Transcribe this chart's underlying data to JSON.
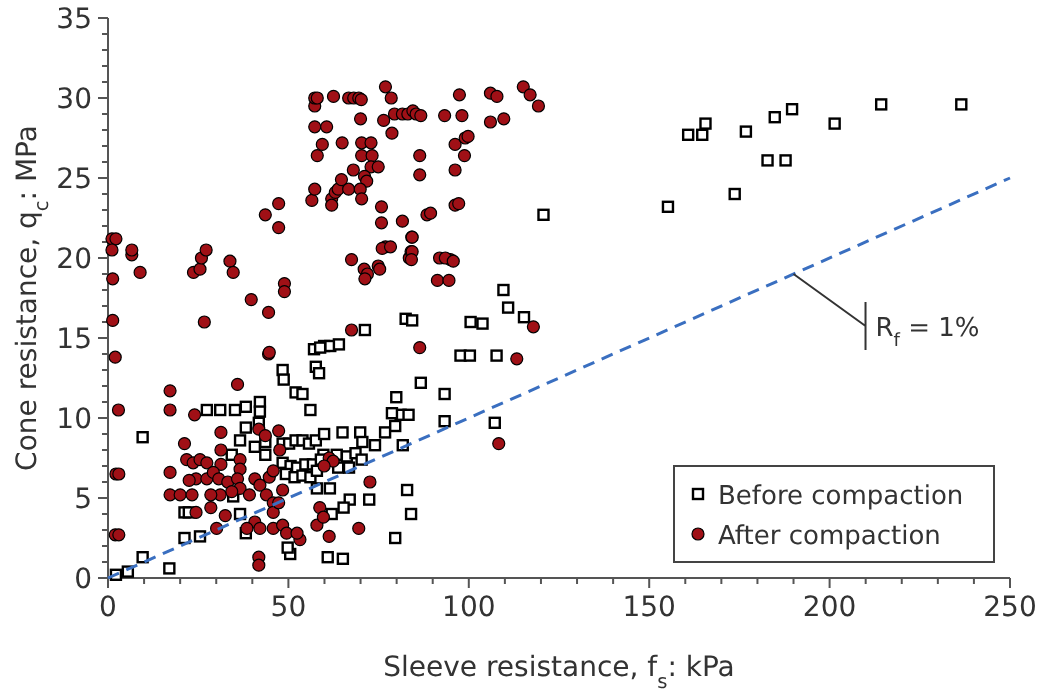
{
  "chart_data": {
    "type": "scatter",
    "xlabel": "Sleeve resistance, f$_{s}$: kPa",
    "ylabel": "Cone resistance, q$_{c}$: MPa",
    "xlim": [
      0,
      250
    ],
    "ylim": [
      0,
      35
    ],
    "xticks": [
      0,
      {
        "value": 10,
        "label": null
      },
      {
        "value": 20,
        "label": null
      },
      {
        "value": 30,
        "label": null
      },
      {
        "value": 40,
        "label": null
      },
      50,
      {
        "value": 60,
        "label": null
      },
      {
        "value": 70,
        "label": null
      },
      {
        "value": 80,
        "label": null
      },
      {
        "value": 90,
        "label": null
      },
      100,
      {
        "value": 110,
        "label": null
      },
      {
        "value": 120,
        "label": null
      },
      {
        "value": 130,
        "label": null
      },
      {
        "value": 140,
        "label": null
      },
      150,
      {
        "value": 160,
        "label": null
      },
      {
        "value": 170,
        "label": null
      },
      {
        "value": 180,
        "label": null
      },
      {
        "value": 190,
        "label": null
      },
      200,
      {
        "value": 210,
        "label": null
      },
      {
        "value": 220,
        "label": null
      },
      {
        "value": 230,
        "label": null
      },
      {
        "value": 240,
        "label": null
      },
      250
    ],
    "yticks": [
      0,
      {
        "value": 1,
        "label": null
      },
      {
        "value": 2,
        "label": null
      },
      {
        "value": 3,
        "label": null
      },
      {
        "value": 4,
        "label": null
      },
      5,
      {
        "value": 6,
        "label": null
      },
      {
        "value": 7,
        "label": null
      },
      {
        "value": 8,
        "label": null
      },
      {
        "value": 9,
        "label": null
      },
      10,
      {
        "value": 11,
        "label": null
      },
      {
        "value": 12,
        "label": null
      },
      {
        "value": 13,
        "label": null
      },
      {
        "value": 14,
        "label": null
      },
      15,
      {
        "value": 16,
        "label": null
      },
      {
        "value": 17,
        "label": null
      },
      {
        "value": 18,
        "label": null
      },
      {
        "value": 19,
        "label": null
      },
      20,
      {
        "value": 21,
        "label": null
      },
      {
        "value": 22,
        "label": null
      },
      {
        "value": 23,
        "label": null
      },
      {
        "value": 24,
        "label": null
      },
      25,
      {
        "value": 26,
        "label": null
      },
      {
        "value": 27,
        "label": null
      },
      {
        "value": 28,
        "label": null
      },
      {
        "value": 29,
        "label": null
      },
      30,
      {
        "value": 31,
        "label": null
      },
      {
        "value": 32,
        "label": null
      },
      {
        "value": 33,
        "label": null
      },
      {
        "value": 34,
        "label": null
      },
      35
    ],
    "grid": false,
    "legend": "bottom right",
    "annotations": [
      {
        "text": "R$_{f}$ = 1%",
        "x": 190,
        "y": 19
      }
    ],
    "series": [
      {
        "name": "Before compaction",
        "marker": "square",
        "color": "#000000",
        "x": [
          2.2,
          5.5,
          9.6,
          17,
          9.6,
          21.2,
          22.4,
          21.2,
          25.5,
          27.4,
          31.1,
          35.2,
          38.2,
          42.1,
          42.1,
          41.8,
          48.4,
          48.7,
          52,
          53.9,
          57.6,
          58.5,
          56.1,
          59.9,
          61.6,
          64,
          57.1,
          58.8,
          71.2,
          82.5,
          97.7,
          100.5,
          100.3,
          107.7,
          107.2,
          38.2,
          36.6,
          34.3,
          40.7,
          43.6,
          43.6,
          48.4,
          50.2,
          52,
          53.9,
          55.7,
          57.6,
          59.9,
          65,
          69.9,
          59.7,
          63.4,
          66.2,
          68.6,
          48.4,
          50.6,
          52.4,
          54.7,
          56.8,
          59,
          49.3,
          51.7,
          53.9,
          56.1,
          57.9,
          63.8,
          66.8,
          70.3,
          74,
          76.8,
          79.6,
          81.1,
          78.7,
          83.3,
          79.9,
          81.7,
          86.7,
          93.3,
          93.3,
          82.9,
          84,
          79.6,
          72.4,
          67,
          65.3,
          62,
          60.9,
          65.1,
          57.9,
          61.5,
          38.2,
          50.5,
          49.8,
          36.6,
          34.7,
          70.5,
          84.3,
          103.8,
          109.6,
          110.9,
          115.3,
          120.7,
          155.2,
          160.8,
          164.7,
          165.6,
          176.8,
          173.7,
          182.8,
          187.8,
          184.8,
          189.6,
          201.4,
          214.3,
          236.5
        ],
        "values": [
          0.2,
          0.4,
          1.3,
          0.6,
          8.8,
          4.1,
          4.1,
          2.5,
          2.6,
          10.5,
          10.5,
          10.5,
          10.7,
          11,
          10.4,
          9.7,
          13,
          12.4,
          11.6,
          11.5,
          13.2,
          12.8,
          10.5,
          14.5,
          14.5,
          14.6,
          14.3,
          14.4,
          15.5,
          16.2,
          13.9,
          16,
          13.9,
          13.9,
          9.7,
          9.4,
          8.6,
          7.7,
          8.2,
          8.5,
          7.7,
          8.4,
          8.4,
          8.6,
          8.6,
          8.4,
          8.6,
          9,
          9.1,
          9.1,
          7.7,
          7.7,
          7.6,
          7.8,
          7.2,
          7,
          6.9,
          7.1,
          7.1,
          7.4,
          6.5,
          6.3,
          6.4,
          6.3,
          6.7,
          6.9,
          6.9,
          7.4,
          8.3,
          9.1,
          9.5,
          10.2,
          10.3,
          10.2,
          11.3,
          8.3,
          12.2,
          11.5,
          9.8,
          5.5,
          4,
          2.5,
          4.9,
          4.9,
          4.4,
          4,
          1.3,
          1.2,
          5.6,
          5.6,
          2.8,
          1.5,
          1.9,
          4,
          5.1,
          8.5,
          16.1,
          15.9,
          18,
          16.9,
          16.3,
          22.7,
          23.2,
          27.7,
          27.7,
          28.4,
          27.9,
          24,
          26.1,
          26.1,
          28.8,
          29.3,
          28.4,
          29.6,
          29.6
        ]
      },
      {
        "name": "After compaction",
        "marker": "circle",
        "color": "#a01016",
        "x": [
          1.1,
          2.2,
          1.1,
          6.6,
          6.6,
          8.9,
          1.3,
          1.3,
          2,
          23.7,
          25.5,
          25.9,
          27.2,
          26.7,
          33.8,
          34.7,
          39.7,
          44.5,
          43.6,
          47.3,
          47.3,
          48.9,
          48.9,
          44.5,
          56.5,
          57.3,
          57.3,
          57.3,
          58,
          62.5,
          57.3,
          60.6,
          58,
          59.4,
          64.9,
          62,
          62,
          63,
          63.8,
          64.7,
          66.7,
          68,
          66.7,
          68.1,
          69.5,
          70.2,
          70,
          70.3,
          70.3,
          72.9,
          73.2,
          72.9,
          71.1,
          71.7,
          69.9,
          70.3,
          74.9,
          75.8,
          75.8,
          76.9,
          78.5,
          76.4,
          78.7,
          79.4,
          81.6,
          83.1,
          84.5,
          85.4,
          86.7,
          86.4,
          86.4,
          81.6,
          84.2,
          76.9,
          76,
          78.3,
          67.5,
          71,
          71.9,
          71.2,
          74.9,
          75.3,
          83.5,
          84,
          88.4,
          91.3,
          91.9,
          94.9,
          96.2,
          96.2,
          93.3,
          98.1,
          97.4,
          96.2,
          98.8,
          99,
          67.5,
          86.4,
          106,
          107.8,
          115.1,
          117,
          119.3,
          106,
          109.7,
          99.8,
          97.2,
          89.4,
          84.3,
          84.3,
          84.1,
          93.5,
          95.7,
          94.5,
          117.9,
          113.3,
          108.3,
          2.9,
          2.2,
          3,
          2,
          3,
          17.2,
          17.2,
          44.7,
          35.9,
          24,
          31.3,
          21.2,
          47.3,
          47.6,
          17.2,
          17.2,
          20,
          21.8,
          23.6,
          25.5,
          27.4,
          24.4,
          22.5,
          27.4,
          31.3,
          31.3,
          29.2,
          30.7,
          33.2,
          36.6,
          36.6,
          35.9,
          36.6,
          34.3,
          31.1,
          28.5,
          23.3,
          24.4,
          28.5,
          32.5,
          30.1,
          40.7,
          42.1,
          44.7,
          45.8,
          43.9,
          45.8,
          45.8,
          47.3,
          40.7,
          38.5,
          42.1,
          45.8,
          48.4,
          49.5,
          53.2,
          41.8,
          41.8,
          39.2,
          48.4,
          52.4,
          58.7,
          57.9,
          59.7,
          61.3,
          61.3,
          62.4,
          59.9,
          72.6,
          69.5,
          41.8,
          43.6
        ],
        "values": [
          21.2,
          21.2,
          20.5,
          20.2,
          20.5,
          19.1,
          18.7,
          16.1,
          13.8,
          19.1,
          19.3,
          20,
          20.5,
          16,
          19.8,
          19.1,
          17.4,
          16.6,
          22.7,
          23.4,
          21.9,
          18.4,
          17.9,
          14,
          23.6,
          24.3,
          29.5,
          30,
          30,
          30.1,
          28.2,
          28.2,
          26.4,
          27.1,
          27.2,
          23.7,
          23.3,
          24.1,
          24.3,
          24.9,
          24.3,
          25.5,
          30,
          30,
          30,
          29.9,
          28.7,
          27.2,
          26.4,
          27.2,
          26.4,
          25.7,
          25.1,
          24.8,
          24.3,
          23.7,
          25.7,
          23.2,
          22.2,
          30.7,
          30,
          28.6,
          27.8,
          29,
          29,
          29,
          29.2,
          29,
          28.9,
          26.4,
          25.2,
          22.3,
          21.3,
          20.7,
          20.6,
          20.7,
          19.9,
          19.3,
          19,
          18.7,
          19.5,
          19.3,
          20,
          20.4,
          22.7,
          18.6,
          20,
          19.9,
          23.3,
          25.5,
          28.9,
          28.9,
          30.2,
          27.1,
          26.4,
          27.5,
          15.5,
          14.4,
          30.3,
          30.1,
          30.7,
          30.2,
          29.5,
          28.5,
          28.7,
          27.6,
          23.4,
          22.8,
          21.3,
          20.4,
          19.9,
          20,
          19.8,
          18.6,
          15.7,
          13.7,
          8.4,
          10.5,
          6.5,
          6.5,
          2.7,
          2.7,
          11.7,
          10.5,
          14.1,
          12.1,
          10.2,
          9.1,
          8.4,
          9.2,
          8,
          6.6,
          5.2,
          5.2,
          7.4,
          7.2,
          7.4,
          7.2,
          6.2,
          6.1,
          6.2,
          8,
          7.1,
          6.6,
          6.2,
          6,
          7.4,
          6.8,
          6.2,
          5.6,
          5.4,
          5.2,
          5.2,
          5.2,
          4.1,
          4.4,
          3.9,
          3.1,
          6.2,
          5.8,
          6.3,
          6.7,
          5.2,
          4.7,
          4.1,
          4.7,
          3.5,
          3.1,
          3.1,
          3.1,
          3.3,
          2.8,
          2.4,
          1.3,
          0.8,
          5.2,
          5.5,
          2.8,
          4.4,
          3.3,
          3.8,
          2.6,
          7.5,
          7.3,
          7,
          6,
          3.1,
          9.3,
          8.9
        ]
      },
      {
        "type": "line",
        "line_style": "dashed",
        "color": "#3a6fc0",
        "x": [
          0,
          250
        ],
        "values": [
          0,
          25
        ]
      }
    ]
  }
}
